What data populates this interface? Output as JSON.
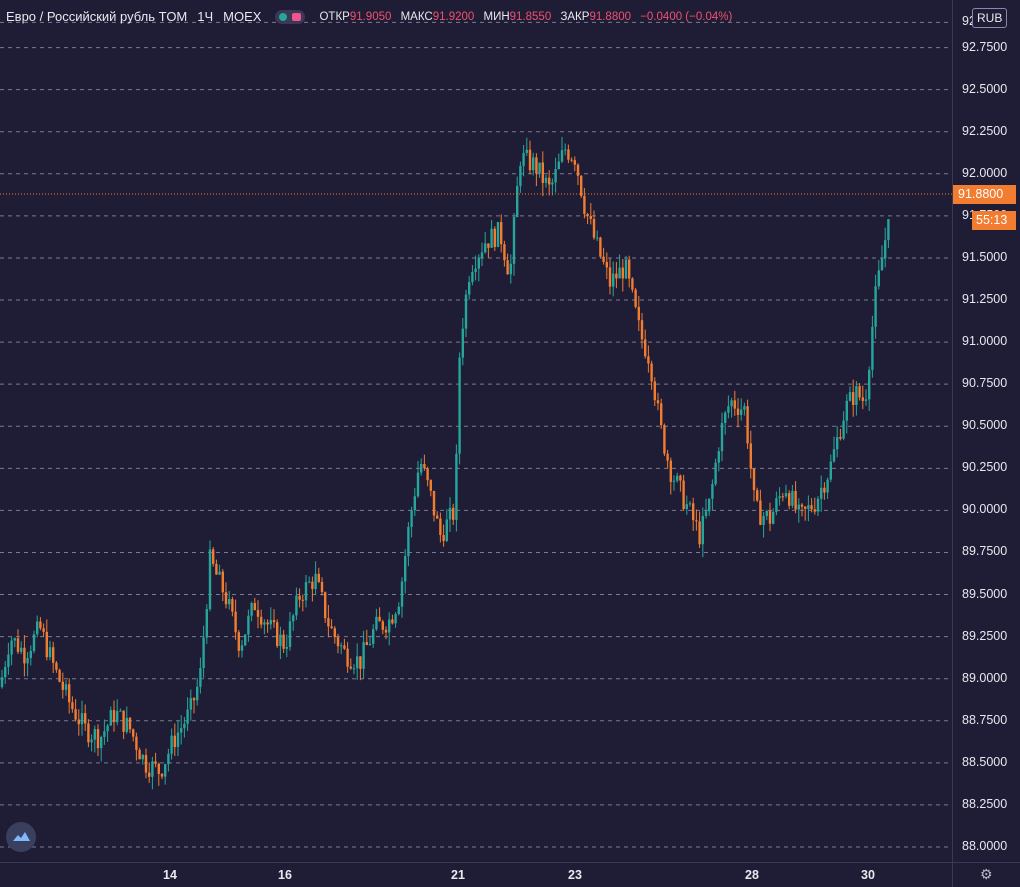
{
  "legend": {
    "symbol": "Евро / Российский рубль TOM",
    "interval": "1Ч",
    "exchange": "MOEX",
    "open_label": "ОТКР",
    "open_value": "91.9050",
    "high_label": "МАКС",
    "high_value": "91.9200",
    "low_label": "МИН",
    "low_value": "91.8550",
    "close_label": "ЗАКР",
    "close_value": "91.8800",
    "change": "−0.0400 (−0.04%)"
  },
  "currency_badge": "RUB",
  "last_price": "91.8800",
  "countdown": "55:13",
  "colors": {
    "up": "#26a69a",
    "down": "#f27c30",
    "background": "#1f1d35",
    "grid": "#c8c8d8"
  },
  "icons": {
    "logo": "tradingview-logo-icon",
    "settings": "gear-icon"
  },
  "chart_data": {
    "type": "candlestick",
    "ylim": [
      88.0,
      92.95
    ],
    "y_ticks": [
      "88.0000",
      "88.2500",
      "88.5000",
      "88.7500",
      "89.0000",
      "89.2500",
      "89.5000",
      "89.7500",
      "90.0000",
      "90.2500",
      "90.5000",
      "90.7500",
      "91.0000",
      "91.2500",
      "91.5000",
      "91.7500",
      "92.0000",
      "92.2500",
      "92.5000",
      "92.7500",
      "92.9000"
    ],
    "x_ticks": [
      "14",
      "16",
      "21",
      "23",
      "28",
      "30"
    ],
    "last": 91.88,
    "keypoints": [
      [
        0,
        88.95
      ],
      [
        10,
        89.25
      ],
      [
        25,
        89.15
      ],
      [
        40,
        89.3
      ],
      [
        55,
        89.05
      ],
      [
        70,
        88.85
      ],
      [
        85,
        88.7
      ],
      [
        100,
        88.65
      ],
      [
        115,
        88.8
      ],
      [
        130,
        88.7
      ],
      [
        145,
        88.5
      ],
      [
        160,
        88.45
      ],
      [
        175,
        88.65
      ],
      [
        190,
        88.8
      ],
      [
        200,
        89.0
      ],
      [
        210,
        89.7
      ],
      [
        225,
        89.5
      ],
      [
        240,
        89.2
      ],
      [
        255,
        89.45
      ],
      [
        270,
        89.3
      ],
      [
        285,
        89.2
      ],
      [
        300,
        89.5
      ],
      [
        315,
        89.6
      ],
      [
        330,
        89.3
      ],
      [
        345,
        89.15
      ],
      [
        360,
        89.1
      ],
      [
        375,
        89.3
      ],
      [
        390,
        89.35
      ],
      [
        400,
        89.5
      ],
      [
        410,
        89.95
      ],
      [
        420,
        90.3
      ],
      [
        430,
        90.1
      ],
      [
        440,
        89.85
      ],
      [
        455,
        90.0
      ],
      [
        460,
        91.0
      ],
      [
        470,
        91.45
      ],
      [
        485,
        91.6
      ],
      [
        500,
        91.65
      ],
      [
        510,
        91.4
      ],
      [
        520,
        92.1
      ],
      [
        535,
        92.05
      ],
      [
        550,
        91.9
      ],
      [
        565,
        92.15
      ],
      [
        575,
        92.1
      ],
      [
        585,
        91.8
      ],
      [
        595,
        91.6
      ],
      [
        610,
        91.35
      ],
      [
        625,
        91.45
      ],
      [
        640,
        91.05
      ],
      [
        650,
        90.9
      ],
      [
        660,
        90.5
      ],
      [
        670,
        90.25
      ],
      [
        685,
        90.05
      ],
      [
        700,
        89.85
      ],
      [
        710,
        90.05
      ],
      [
        720,
        90.45
      ],
      [
        730,
        90.65
      ],
      [
        745,
        90.6
      ],
      [
        755,
        90.0
      ],
      [
        770,
        89.95
      ],
      [
        785,
        90.15
      ],
      [
        800,
        89.95
      ],
      [
        815,
        90.05
      ],
      [
        830,
        90.25
      ],
      [
        845,
        90.6
      ],
      [
        855,
        90.7
      ],
      [
        865,
        90.65
      ],
      [
        875,
        91.25
      ],
      [
        885,
        91.6
      ],
      [
        890,
        91.88
      ]
    ]
  }
}
